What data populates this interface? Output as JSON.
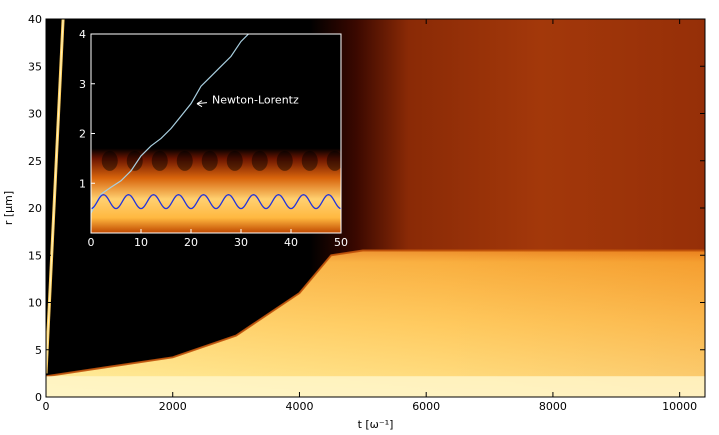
{
  "chart_data": [
    {
      "type": "heatmap",
      "title": "",
      "xlabel": "t [ω⁻¹]",
      "ylabel": "r [μm]",
      "xlim": [
        0,
        10400
      ],
      "ylim": [
        0,
        40
      ],
      "xticks": [
        "0",
        "2000",
        "4000",
        "6000",
        "8000",
        "10000"
      ],
      "yticks": [
        "0",
        "5",
        "10",
        "15",
        "20",
        "25",
        "30",
        "35",
        "40"
      ],
      "colormap": "afmhot",
      "features": [
        {
          "name": "core",
          "r_range": [
            0,
            2.2
          ],
          "t_range": [
            0,
            10400
          ]
        },
        {
          "name": "expanding-front",
          "t": [
            0,
            1000,
            2000,
            3000,
            4000,
            4500,
            5000,
            6000,
            10400
          ],
          "r": [
            2.2,
            3.2,
            4.2,
            6.5,
            11,
            15,
            15.5,
            15.5,
            15.5
          ]
        },
        {
          "name": "early-ray",
          "t": [
            0,
            270
          ],
          "r": [
            2.5,
            40
          ]
        }
      ]
    },
    {
      "type": "line",
      "title": "",
      "xlim": [
        0,
        50
      ],
      "ylim": [
        0,
        4
      ],
      "xticks": [
        "0",
        "10",
        "20",
        "30",
        "40",
        "50"
      ],
      "yticks": [
        "1",
        "2",
        "3",
        "4"
      ],
      "annotation": "Newton-Lorentz",
      "series": [
        {
          "color": "#a9cfe0",
          "x": [
            0,
            2,
            4,
            6,
            8,
            10,
            12,
            14,
            16,
            18,
            20,
            22,
            24,
            26,
            28,
            30,
            31.5
          ],
          "y": [
            0.4,
            0.78,
            0.92,
            1.05,
            1.25,
            1.55,
            1.75,
            1.9,
            2.1,
            2.35,
            2.6,
            2.95,
            3.15,
            3.35,
            3.55,
            3.85,
            4.0
          ]
        },
        {
          "color": "#2233dd",
          "x_range": [
            0,
            50
          ],
          "mean": 0.63,
          "amplitude": 0.14,
          "period": 5
        }
      ]
    }
  ],
  "colors": {
    "background": "#000000",
    "blue_line": "#2233dd",
    "light_line": "#a9cfe0"
  }
}
